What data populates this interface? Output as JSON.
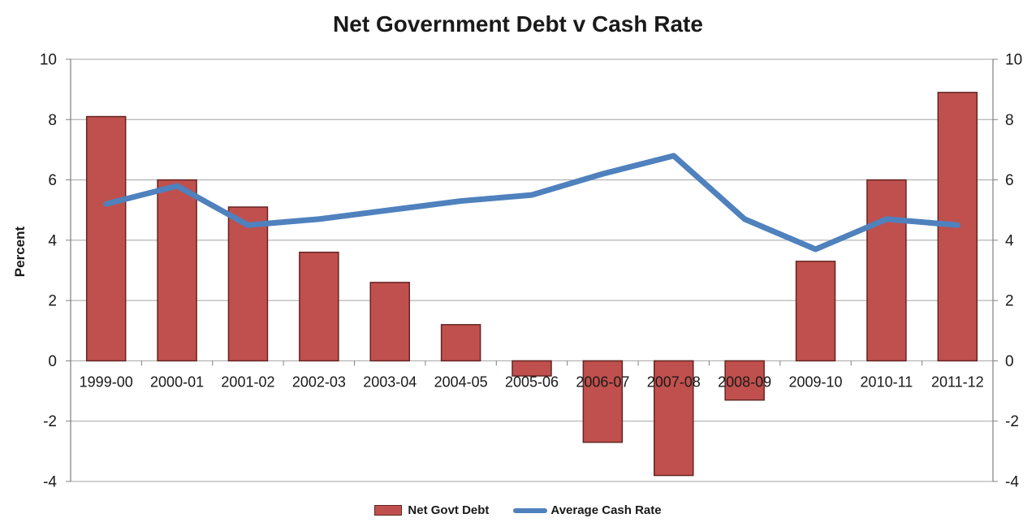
{
  "chart_data": {
    "type": "combo_bar_line",
    "title": "Net Government Debt v Cash Rate",
    "xlabel": "",
    "ylabel": "Percent",
    "categories": [
      "1999-00",
      "2000-01",
      "2001-02",
      "2002-03",
      "2003-04",
      "2004-05",
      "2005-06",
      "2006-07",
      "2007-08",
      "2008-09",
      "2009-10",
      "2010-11",
      "2011-12"
    ],
    "series": [
      {
        "name": "Net Govt Debt",
        "type": "bar",
        "color": "#C0504D",
        "border_color": "#632523",
        "values": [
          8.1,
          6.0,
          5.1,
          3.6,
          2.6,
          1.2,
          -0.5,
          -2.7,
          -3.8,
          -1.3,
          3.3,
          6.0,
          8.9
        ]
      },
      {
        "name": "Average Cash Rate",
        "type": "line",
        "color": "#4F81BD",
        "values": [
          5.2,
          5.8,
          4.5,
          4.7,
          5.0,
          5.3,
          5.5,
          6.2,
          6.8,
          4.7,
          3.7,
          4.7,
          4.5
        ]
      }
    ],
    "ylim": [
      -4,
      10
    ],
    "ytick_step": 2,
    "yticks": [
      -4,
      -2,
      0,
      2,
      4,
      6,
      8,
      10
    ],
    "grid": true,
    "dual_y_axis": true,
    "legend_position": "bottom",
    "colors": {
      "grid": "#A3A3A3",
      "axis": "#808080",
      "text": "#1A1A1A",
      "background": "#FFFFFF"
    }
  }
}
